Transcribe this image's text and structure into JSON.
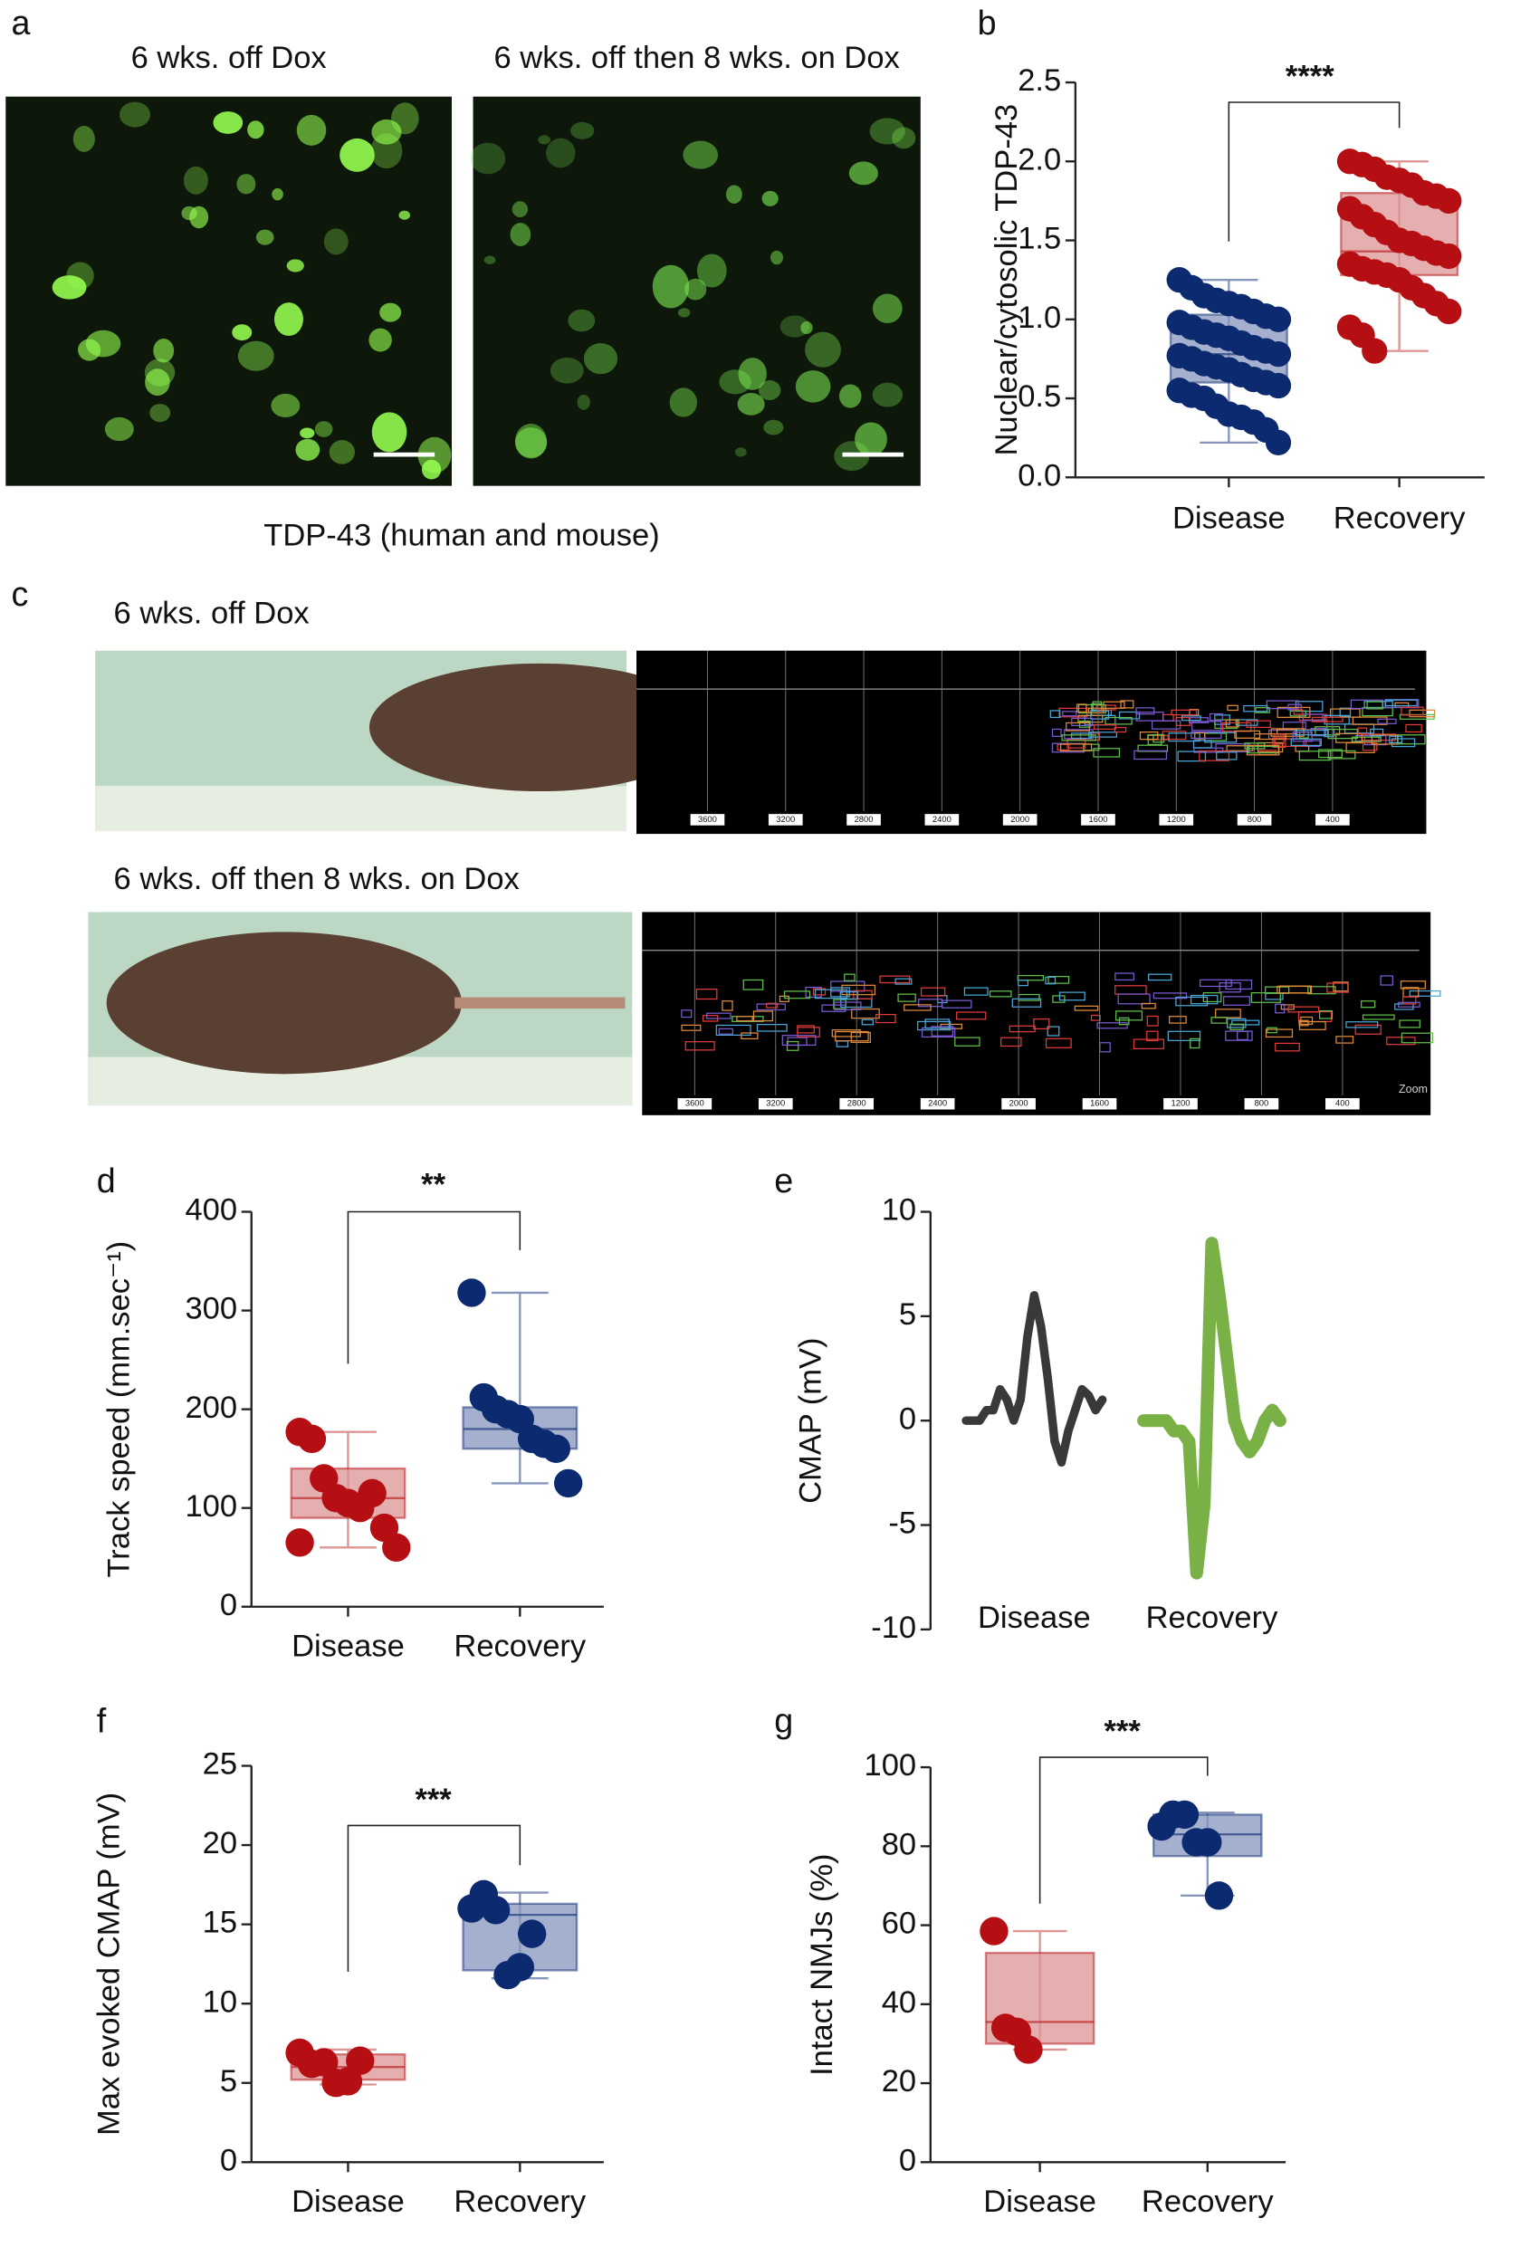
{
  "figure_images": {
    "a": {
      "label": "a",
      "titles": [
        "6 wks. off Dox",
        "6 wks. off then 8 wks. on Dox"
      ],
      "caption": "TDP-43 (human and mouse)"
    },
    "c": {
      "label": "c",
      "rows": [
        {
          "title": "6 wks. off Dox",
          "track_labels": [
            "3600",
            "3200",
            "2800",
            "2400",
            "2000",
            "1600",
            "1200",
            "800",
            "400"
          ]
        },
        {
          "title": "6 wks. off then 8 wks. on Dox",
          "track_labels": [
            "3600",
            "3200",
            "2800",
            "2400",
            "2000",
            "1600",
            "1200",
            "800",
            "400"
          ],
          "zoom": "Zoom"
        }
      ]
    }
  },
  "chart_data": [
    {
      "type": "box",
      "label": "b",
      "ylabel": "Nuclear/cytosolic TDP-43",
      "annotation": "****",
      "categories": [
        "Disease",
        "Recovery"
      ],
      "ylim": [
        0,
        2.5
      ],
      "yticks": [
        {
          "value": 0,
          "label": "0.0"
        },
        0.5,
        {
          "value": 1,
          "label": "1.0"
        },
        1.5,
        {
          "value": 2,
          "label": "2.0"
        },
        2.5
      ],
      "boxes": [
        {
          "color": "#0b2a6f",
          "box_color": "#8696bd",
          "min": 0.22,
          "q1": 0.6,
          "median": 0.78,
          "q3": 1.03,
          "max": 1.25,
          "points": [
            1.25,
            1.2,
            1.15,
            1.12,
            1.1,
            1.08,
            1.05,
            1.02,
            1.0,
            0.98,
            0.95,
            0.92,
            0.9,
            0.88,
            0.85,
            0.82,
            0.8,
            0.78,
            0.77,
            0.75,
            0.72,
            0.7,
            0.68,
            0.65,
            0.62,
            0.6,
            0.58,
            0.55,
            0.52,
            0.5,
            0.45,
            0.4,
            0.38,
            0.35,
            0.3,
            0.22
          ]
        },
        {
          "color": "#b50f14",
          "box_color": "#dc9494",
          "min": 0.8,
          "q1": 1.28,
          "median": 1.43,
          "q3": 1.8,
          "max": 2.0,
          "points": [
            2.0,
            1.98,
            1.95,
            1.9,
            1.88,
            1.85,
            1.8,
            1.78,
            1.75,
            1.7,
            1.65,
            1.6,
            1.55,
            1.5,
            1.48,
            1.45,
            1.42,
            1.4,
            1.35,
            1.32,
            1.3,
            1.28,
            1.25,
            1.2,
            1.15,
            1.1,
            1.05,
            0.95,
            0.9,
            0.8
          ]
        }
      ]
    },
    {
      "type": "box",
      "label": "d",
      "ylabel": "Track speed (mm.sec⁻¹)",
      "annotation": "**",
      "categories": [
        "Disease",
        "Recovery"
      ],
      "ylim": [
        0,
        400
      ],
      "yticks": [
        0,
        100,
        200,
        300,
        400
      ],
      "boxes": [
        {
          "color": "#b50f14",
          "box_color": "#dc9494",
          "min": 60,
          "q1": 90,
          "median": 110,
          "q3": 140,
          "max": 177,
          "points": [
            177,
            170,
            130,
            110,
            105,
            100,
            115,
            80,
            60,
            65
          ]
        },
        {
          "color": "#0b2a6f",
          "box_color": "#8696bd",
          "min": 125,
          "q1": 160,
          "median": 180,
          "q3": 202,
          "max": 318,
          "points": [
            318,
            212,
            200,
            195,
            190,
            170,
            165,
            160,
            125
          ]
        }
      ]
    },
    {
      "type": "trace",
      "label": "e",
      "ylabel": "CMAP (mV)",
      "ylim": [
        -10,
        10
      ],
      "yticks": [
        10,
        5,
        0,
        -5,
        -10
      ],
      "series": [
        {
          "name": "Disease",
          "color": "#232323",
          "values": [
            0,
            0,
            0,
            0.5,
            0.5,
            1.5,
            1,
            0,
            1,
            4,
            6,
            4.5,
            2,
            -1,
            -2,
            -0.5,
            0.5,
            1.5,
            1.2,
            0.5,
            1
          ]
        },
        {
          "name": "Recovery",
          "color": "#6aa832",
          "values": [
            0,
            0,
            0,
            0,
            -0.5,
            -0.5,
            -1,
            -7.3,
            -4,
            8.5,
            6,
            3,
            0,
            -1,
            -1.5,
            -1,
            0,
            0.5,
            0
          ]
        }
      ]
    },
    {
      "type": "box",
      "label": "f",
      "ylabel": "Max evoked CMAP (mV)",
      "annotation": "***",
      "categories": [
        "Disease",
        "Recovery"
      ],
      "ylim": [
        0,
        25
      ],
      "yticks": [
        0,
        5,
        10,
        15,
        20,
        25
      ],
      "boxes": [
        {
          "color": "#b50f14",
          "box_color": "#dc9494",
          "min": 4.9,
          "q1": 5.2,
          "median": 6.0,
          "q3": 6.8,
          "max": 7.1,
          "points": [
            6.9,
            6.2,
            6.3,
            5.0,
            5.1,
            6.4
          ]
        },
        {
          "color": "#0b2a6f",
          "box_color": "#8696bd",
          "min": 11.6,
          "q1": 12.1,
          "median": 15.6,
          "q3": 16.3,
          "max": 17,
          "points": [
            16.0,
            16.9,
            15.9,
            11.8,
            12.3,
            14.4
          ]
        }
      ]
    },
    {
      "type": "box",
      "label": "g",
      "ylabel": "Intact NMJs (%)",
      "annotation": "***",
      "categories": [
        "Disease",
        "Recovery"
      ],
      "ylim": [
        0,
        100
      ],
      "yticks": [
        0,
        20,
        40,
        60,
        80,
        100
      ],
      "boxes": [
        {
          "color": "#b50f14",
          "box_color": "#dc9494",
          "min": 28.5,
          "q1": 30,
          "median": 35.5,
          "q3": 53,
          "max": 58.5,
          "points": [
            58.5,
            34,
            33,
            28.5
          ]
        },
        {
          "color": "#0b2a6f",
          "box_color": "#8696bd",
          "min": 67.5,
          "q1": 77.5,
          "median": 83,
          "q3": 88,
          "max": 88.5,
          "points": [
            85,
            88,
            88,
            81,
            81,
            67.5
          ]
        }
      ]
    }
  ]
}
